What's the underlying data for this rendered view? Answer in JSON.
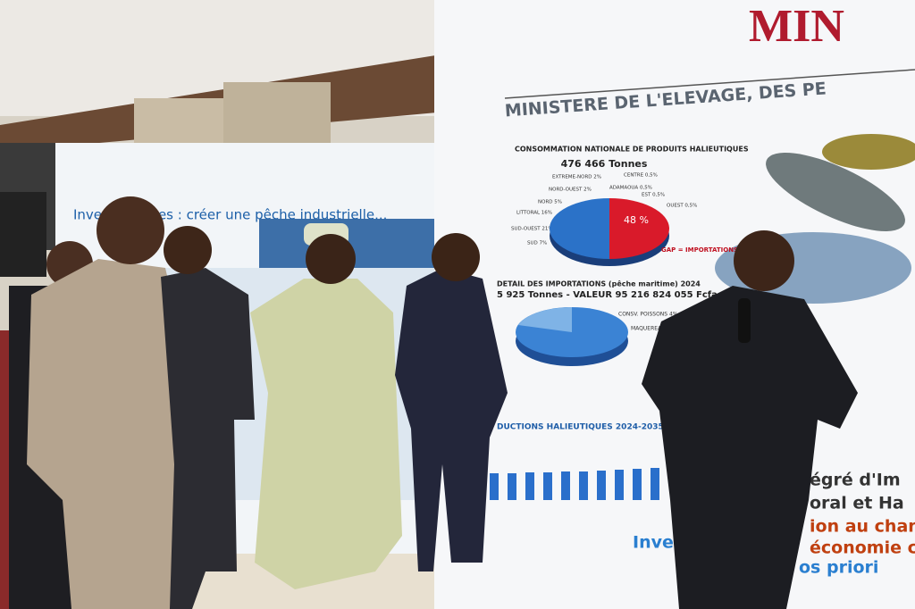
{
  "banner_right": {
    "brand": "MIN",
    "ministry": "MINISTERE DE L'ELEVAGE, DES PE",
    "consumption": {
      "title": "CONSOMMATION NATIONALE DE PRODUITS HALIEUTIQUES",
      "total": "476 466 Tonnes",
      "regions": [
        "EXTREME-NORD 2%",
        "NORD-OUEST 2%",
        "NORD 5%",
        "LITTORAL 16%",
        "SUD-OUEST 21%",
        "SUD 7%",
        "CENTRE 0,5%",
        "ADAMAOUA 0,5%",
        "EST 0,5%",
        "OUEST 0,5%"
      ],
      "share": "48 %",
      "gap": "GAP = IMPORTATIONS"
    },
    "imports": {
      "title": "DETAIL DES IMPORTATIONS (pêche maritime) 2024",
      "detail": "5 925 Tonnes - VALEUR 95 216 824 055 Fcfa",
      "labels": [
        "CONSV. POISSONS 4%",
        "MAQUEREAU 5"
      ]
    },
    "productions": {
      "title": "DUCTIONS HALIEUTIQUES 2024-2035 (tonnes)"
    },
    "slogan": [
      "égré d'Im",
      "oral et Ha",
      "ion au chan",
      "économie c",
      "Inve",
      "os priori"
    ]
  },
  "banner_left": {
    "slogan": "Inve      s attentes : créer une pêche industrielle..."
  }
}
